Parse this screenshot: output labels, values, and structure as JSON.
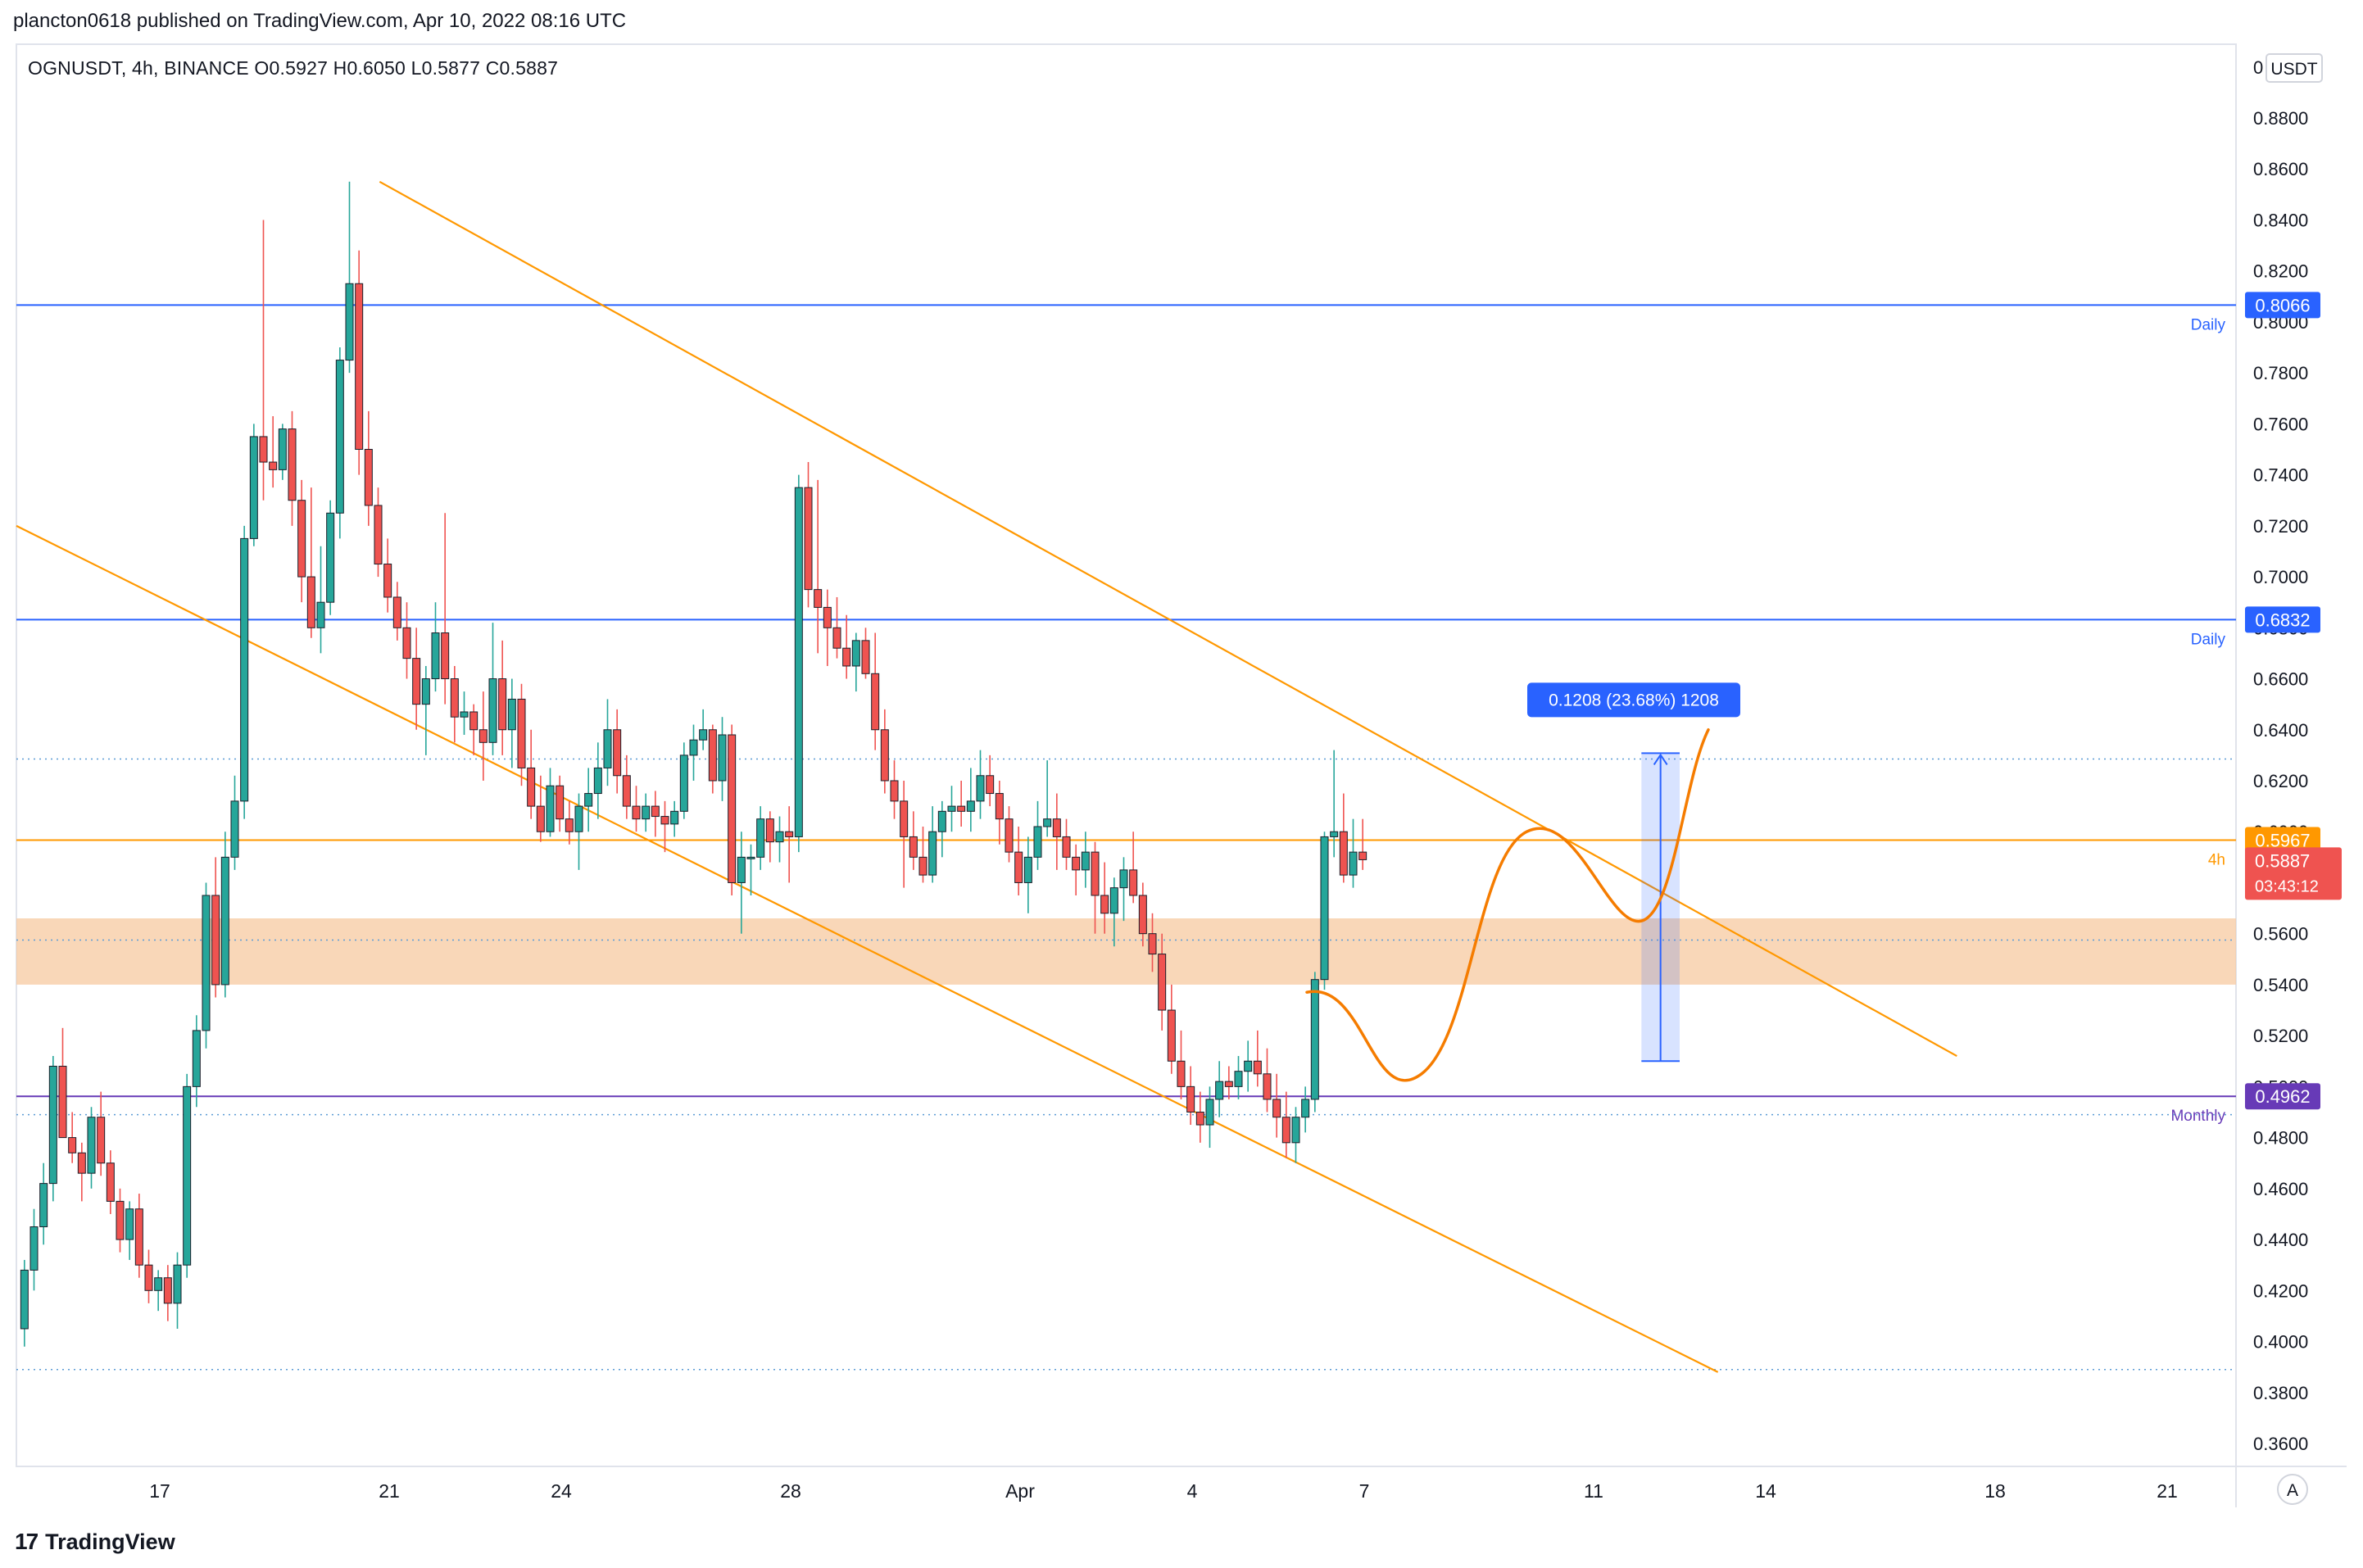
{
  "header": {
    "published": "plancton0618 published on TradingView.com, Apr 10, 2022 08:16 UTC"
  },
  "symbol_bar": {
    "text": "OGNUSDT, 4h, BINANCE  O0.5927  H0.6050  L0.5877  C0.5887"
  },
  "footer": {
    "logo_mark": "17",
    "logo_text": "TradingView"
  },
  "price_scale": {
    "currency": "USDT",
    "top_label": "0",
    "ticks": [
      "0.8800",
      "0.8600",
      "0.8400",
      "0.8200",
      "0.8000",
      "0.7800",
      "0.7600",
      "0.7400",
      "0.7200",
      "0.7000",
      "0.6800",
      "0.6600",
      "0.6400",
      "0.6200",
      "0.6000",
      "0.5800",
      "0.5600",
      "0.5400",
      "0.5200",
      "0.5000",
      "0.4800",
      "0.4600",
      "0.4400",
      "0.4200",
      "0.4000",
      "0.3800",
      "0.3600"
    ],
    "auto_label": "A"
  },
  "time_axis": {
    "ticks": [
      {
        "label": "17",
        "date": "2022-03-17"
      },
      {
        "label": "21",
        "date": "2022-03-21"
      },
      {
        "label": "24",
        "date": "2022-03-24"
      },
      {
        "label": "28",
        "date": "2022-03-28"
      },
      {
        "label": "Apr",
        "date": "2022-04-01"
      },
      {
        "label": "4",
        "date": "2022-04-04"
      },
      {
        "label": "7",
        "date": "2022-04-07"
      },
      {
        "label": "11",
        "date": "2022-04-11"
      },
      {
        "label": "14",
        "date": "2022-04-14"
      },
      {
        "label": "18",
        "date": "2022-04-18"
      },
      {
        "label": "21",
        "date": "2022-04-21"
      }
    ]
  },
  "colors": {
    "up": "#26a69a",
    "down": "#ef5350",
    "daily": "#2962ff",
    "fourh": "#ff9800",
    "monthly": "#673ab7",
    "zone": "#f7c9a0",
    "measure": "#2962ff",
    "path": "#f57c00"
  },
  "levels": [
    {
      "price": 0.8066,
      "tag": "0.8066",
      "label": "Daily",
      "kind": "daily"
    },
    {
      "price": 0.6832,
      "tag": "0.6832",
      "label": "Daily",
      "kind": "daily"
    },
    {
      "price": 0.5967,
      "tag": "0.5967",
      "label": "4h",
      "kind": "fourh"
    },
    {
      "price": 0.4962,
      "tag": "0.4962",
      "label": "Monthly",
      "kind": "monthly"
    }
  ],
  "last_price": {
    "price": 0.5887,
    "tag": "0.5887",
    "countdown": "03:43:12"
  },
  "measure": {
    "label": "0.1208 (23.68%) 1208",
    "from": 0.51,
    "to": 0.6308
  },
  "chart_data": {
    "type": "candlestick",
    "title": "OGNUSDT, 4h, BINANCE",
    "timeframe": "4h",
    "ylim": [
      0.35,
      0.895
    ],
    "xlim": [
      "2022-03-14T12:00",
      "2022-04-23T12:00"
    ],
    "grid": false,
    "series_ohlc_4h_approx": [
      [
        0.405,
        0.432,
        0.398,
        0.428
      ],
      [
        0.428,
        0.452,
        0.42,
        0.445
      ],
      [
        0.445,
        0.47,
        0.438,
        0.462
      ],
      [
        0.462,
        0.512,
        0.455,
        0.508
      ],
      [
        0.508,
        0.523,
        0.49,
        0.48
      ],
      [
        0.48,
        0.49,
        0.47,
        0.474
      ],
      [
        0.474,
        0.478,
        0.455,
        0.466
      ],
      [
        0.466,
        0.492,
        0.46,
        0.488
      ],
      [
        0.488,
        0.498,
        0.465,
        0.47
      ],
      [
        0.47,
        0.475,
        0.45,
        0.455
      ],
      [
        0.455,
        0.46,
        0.435,
        0.44
      ],
      [
        0.44,
        0.455,
        0.432,
        0.452
      ],
      [
        0.452,
        0.458,
        0.425,
        0.43
      ],
      [
        0.43,
        0.436,
        0.415,
        0.42
      ],
      [
        0.42,
        0.428,
        0.412,
        0.425
      ],
      [
        0.425,
        0.43,
        0.408,
        0.415
      ],
      [
        0.415,
        0.435,
        0.405,
        0.43
      ],
      [
        0.43,
        0.505,
        0.425,
        0.5
      ],
      [
        0.5,
        0.528,
        0.492,
        0.522
      ],
      [
        0.522,
        0.58,
        0.515,
        0.575
      ],
      [
        0.575,
        0.59,
        0.535,
        0.54
      ],
      [
        0.54,
        0.6,
        0.535,
        0.59
      ],
      [
        0.59,
        0.622,
        0.585,
        0.612
      ],
      [
        0.612,
        0.72,
        0.605,
        0.715
      ],
      [
        0.715,
        0.76,
        0.712,
        0.755
      ],
      [
        0.755,
        0.84,
        0.73,
        0.745
      ],
      [
        0.745,
        0.763,
        0.735,
        0.742
      ],
      [
        0.742,
        0.76,
        0.738,
        0.758
      ],
      [
        0.758,
        0.765,
        0.72,
        0.73
      ],
      [
        0.73,
        0.738,
        0.69,
        0.7
      ],
      [
        0.7,
        0.735,
        0.676,
        0.68
      ],
      [
        0.68,
        0.712,
        0.67,
        0.69
      ],
      [
        0.69,
        0.73,
        0.685,
        0.725
      ],
      [
        0.725,
        0.79,
        0.715,
        0.785
      ],
      [
        0.785,
        0.855,
        0.78,
        0.815
      ],
      [
        0.815,
        0.828,
        0.74,
        0.75
      ],
      [
        0.75,
        0.765,
        0.72,
        0.728
      ],
      [
        0.728,
        0.735,
        0.7,
        0.705
      ],
      [
        0.705,
        0.715,
        0.686,
        0.692
      ],
      [
        0.692,
        0.698,
        0.675,
        0.68
      ],
      [
        0.68,
        0.69,
        0.66,
        0.668
      ],
      [
        0.668,
        0.68,
        0.64,
        0.65
      ],
      [
        0.65,
        0.665,
        0.63,
        0.66
      ],
      [
        0.66,
        0.69,
        0.655,
        0.678
      ],
      [
        0.678,
        0.725,
        0.65,
        0.66
      ],
      [
        0.66,
        0.665,
        0.635,
        0.645
      ],
      [
        0.645,
        0.655,
        0.638,
        0.647
      ],
      [
        0.647,
        0.65,
        0.63,
        0.64
      ],
      [
        0.64,
        0.655,
        0.62,
        0.635
      ],
      [
        0.635,
        0.682,
        0.63,
        0.66
      ],
      [
        0.66,
        0.675,
        0.63,
        0.64
      ],
      [
        0.64,
        0.66,
        0.625,
        0.652
      ],
      [
        0.652,
        0.658,
        0.618,
        0.625
      ],
      [
        0.625,
        0.64,
        0.605,
        0.61
      ],
      [
        0.61,
        0.622,
        0.596,
        0.6
      ],
      [
        0.6,
        0.625,
        0.598,
        0.618
      ],
      [
        0.618,
        0.622,
        0.6,
        0.605
      ],
      [
        0.605,
        0.612,
        0.595,
        0.6
      ],
      [
        0.6,
        0.615,
        0.585,
        0.61
      ],
      [
        0.61,
        0.625,
        0.6,
        0.615
      ],
      [
        0.615,
        0.635,
        0.605,
        0.625
      ],
      [
        0.625,
        0.652,
        0.618,
        0.64
      ],
      [
        0.64,
        0.648,
        0.615,
        0.622
      ],
      [
        0.622,
        0.63,
        0.605,
        0.61
      ],
      [
        0.61,
        0.618,
        0.6,
        0.605
      ],
      [
        0.605,
        0.615,
        0.6,
        0.61
      ],
      [
        0.61,
        0.616,
        0.598,
        0.606
      ],
      [
        0.606,
        0.612,
        0.592,
        0.603
      ],
      [
        0.603,
        0.612,
        0.598,
        0.608
      ],
      [
        0.608,
        0.635,
        0.605,
        0.63
      ],
      [
        0.63,
        0.642,
        0.62,
        0.636
      ],
      [
        0.636,
        0.648,
        0.632,
        0.64
      ],
      [
        0.64,
        0.642,
        0.615,
        0.62
      ],
      [
        0.62,
        0.645,
        0.612,
        0.638
      ],
      [
        0.638,
        0.642,
        0.575,
        0.58
      ],
      [
        0.58,
        0.6,
        0.56,
        0.59
      ],
      [
        0.59,
        0.595,
        0.575,
        0.59
      ],
      [
        0.59,
        0.61,
        0.585,
        0.605
      ],
      [
        0.605,
        0.608,
        0.588,
        0.596
      ],
      [
        0.596,
        0.606,
        0.588,
        0.6
      ],
      [
        0.6,
        0.61,
        0.58,
        0.598
      ],
      [
        0.598,
        0.74,
        0.592,
        0.735
      ],
      [
        0.735,
        0.745,
        0.688,
        0.695
      ],
      [
        0.695,
        0.738,
        0.67,
        0.688
      ],
      [
        0.688,
        0.695,
        0.665,
        0.68
      ],
      [
        0.68,
        0.692,
        0.668,
        0.672
      ],
      [
        0.672,
        0.685,
        0.66,
        0.665
      ],
      [
        0.665,
        0.678,
        0.655,
        0.675
      ],
      [
        0.675,
        0.68,
        0.66,
        0.662
      ],
      [
        0.662,
        0.678,
        0.632,
        0.64
      ],
      [
        0.64,
        0.648,
        0.615,
        0.62
      ],
      [
        0.62,
        0.628,
        0.605,
        0.612
      ],
      [
        0.612,
        0.62,
        0.578,
        0.598
      ],
      [
        0.598,
        0.608,
        0.585,
        0.59
      ],
      [
        0.59,
        0.602,
        0.58,
        0.583
      ],
      [
        0.583,
        0.61,
        0.58,
        0.6
      ],
      [
        0.6,
        0.612,
        0.59,
        0.608
      ],
      [
        0.608,
        0.618,
        0.6,
        0.61
      ],
      [
        0.61,
        0.62,
        0.602,
        0.608
      ],
      [
        0.608,
        0.625,
        0.6,
        0.612
      ],
      [
        0.612,
        0.632,
        0.605,
        0.622
      ],
      [
        0.622,
        0.63,
        0.61,
        0.615
      ],
      [
        0.615,
        0.62,
        0.595,
        0.605
      ],
      [
        0.605,
        0.61,
        0.588,
        0.592
      ],
      [
        0.592,
        0.602,
        0.575,
        0.58
      ],
      [
        0.58,
        0.598,
        0.568,
        0.59
      ],
      [
        0.59,
        0.612,
        0.585,
        0.602
      ],
      [
        0.602,
        0.628,
        0.598,
        0.605
      ],
      [
        0.605,
        0.615,
        0.585,
        0.598
      ],
      [
        0.598,
        0.605,
        0.585,
        0.59
      ],
      [
        0.59,
        0.595,
        0.575,
        0.585
      ],
      [
        0.585,
        0.6,
        0.578,
        0.592
      ],
      [
        0.592,
        0.596,
        0.56,
        0.575
      ],
      [
        0.575,
        0.588,
        0.56,
        0.568
      ],
      [
        0.568,
        0.582,
        0.555,
        0.578
      ],
      [
        0.578,
        0.59,
        0.565,
        0.585
      ],
      [
        0.585,
        0.6,
        0.572,
        0.575
      ],
      [
        0.575,
        0.58,
        0.555,
        0.56
      ],
      [
        0.56,
        0.568,
        0.545,
        0.552
      ],
      [
        0.552,
        0.56,
        0.522,
        0.53
      ],
      [
        0.53,
        0.54,
        0.505,
        0.51
      ],
      [
        0.51,
        0.522,
        0.495,
        0.5
      ],
      [
        0.5,
        0.508,
        0.485,
        0.49
      ],
      [
        0.49,
        0.498,
        0.478,
        0.485
      ],
      [
        0.485,
        0.5,
        0.476,
        0.495
      ],
      [
        0.495,
        0.51,
        0.488,
        0.502
      ],
      [
        0.502,
        0.508,
        0.495,
        0.5
      ],
      [
        0.5,
        0.512,
        0.495,
        0.506
      ],
      [
        0.506,
        0.518,
        0.498,
        0.51
      ],
      [
        0.51,
        0.522,
        0.5,
        0.505
      ],
      [
        0.505,
        0.515,
        0.49,
        0.495
      ],
      [
        0.495,
        0.505,
        0.48,
        0.488
      ],
      [
        0.488,
        0.498,
        0.472,
        0.478
      ],
      [
        0.478,
        0.492,
        0.47,
        0.488
      ],
      [
        0.488,
        0.5,
        0.482,
        0.495
      ],
      [
        0.495,
        0.545,
        0.49,
        0.542
      ],
      [
        0.542,
        0.6,
        0.538,
        0.598
      ],
      [
        0.598,
        0.632,
        0.59,
        0.6
      ],
      [
        0.6,
        0.615,
        0.58,
        0.583
      ],
      [
        0.583,
        0.605,
        0.578,
        0.592
      ],
      [
        0.592,
        0.605,
        0.585,
        0.589
      ]
    ],
    "annotations": [
      {
        "type": "descending_channel_upper",
        "from": [
          "2022-03-20T20:00",
          0.855
        ],
        "to": [
          "2022-04-17T08:00",
          0.512
        ]
      },
      {
        "type": "descending_channel_lower",
        "from": [
          "2022-03-14T12:00",
          0.72
        ],
        "to": [
          "2022-04-13T04:00",
          0.388
        ]
      },
      {
        "type": "demand_zone",
        "range": [
          0.54,
          0.566
        ]
      },
      {
        "type": "projected_path",
        "points": [
          [
            0.537,
            "2022-04-06T00:00"
          ],
          [
            0.505,
            "2022-04-08T00:00"
          ],
          [
            0.6,
            "2022-04-09T20:00"
          ],
          [
            0.565,
            "2022-04-11T20:00"
          ],
          [
            0.64,
            "2022-04-13T00:00"
          ]
        ]
      },
      {
        "type": "price_range_measure",
        "from": 0.51,
        "to": 0.6308,
        "label": "0.1208 (23.68%) 1208"
      }
    ]
  }
}
